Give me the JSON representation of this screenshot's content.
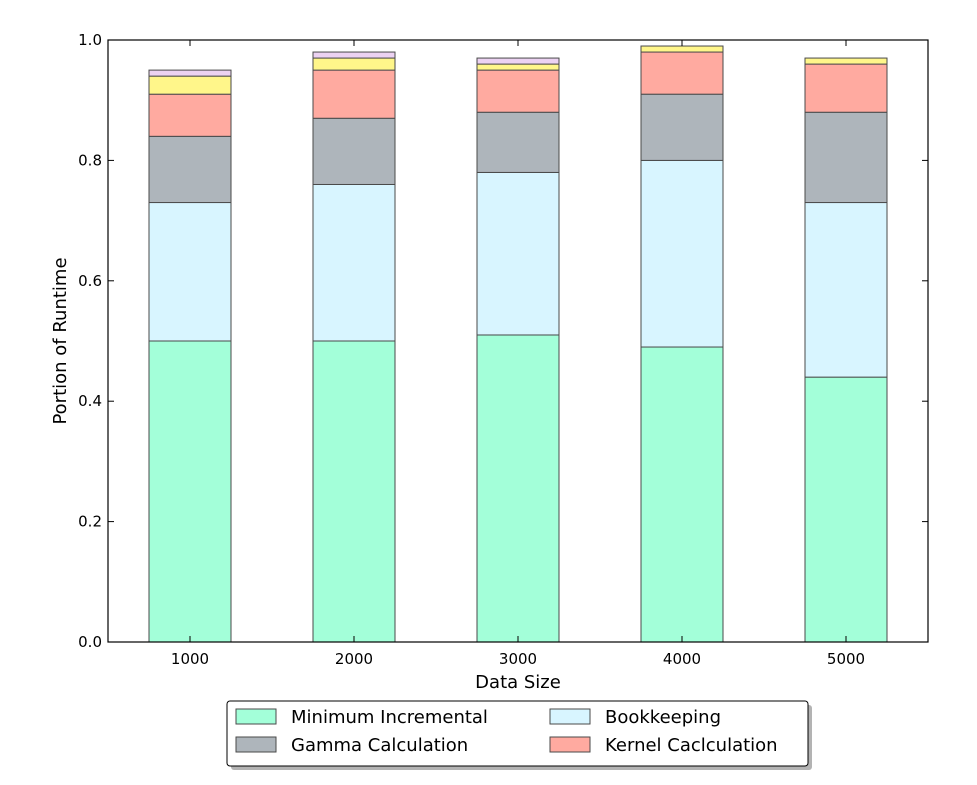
{
  "chart_data": {
    "type": "bar",
    "stacked": true,
    "title": "",
    "xlabel": "Data Size",
    "ylabel": "Portion of Runtime",
    "categories": [
      "1000",
      "2000",
      "3000",
      "4000",
      "5000"
    ],
    "ylim": [
      0,
      1.0
    ],
    "yticks": [
      "0.0",
      "0.2",
      "0.4",
      "0.6",
      "0.8",
      "1.0"
    ],
    "grid": false,
    "legend_position": "bottom-center",
    "series": [
      {
        "name": "Minimum Incremental",
        "color": "#a3ffd9",
        "values": [
          0.5,
          0.5,
          0.51,
          0.49,
          0.44
        ]
      },
      {
        "name": "Bookkeeping",
        "color": "#d8f5ff",
        "values": [
          0.23,
          0.26,
          0.27,
          0.31,
          0.29
        ]
      },
      {
        "name": "Gamma Calculation",
        "color": "#aeb5bb",
        "values": [
          0.11,
          0.11,
          0.1,
          0.11,
          0.15
        ]
      },
      {
        "name": "Kernel Caclculation",
        "color": "#ffaaa0",
        "values": [
          0.07,
          0.08,
          0.07,
          0.07,
          0.08
        ]
      },
      {
        "color": "#fff68a",
        "values": [
          0.03,
          0.02,
          0.01,
          0.01,
          0.01
        ]
      },
      {
        "color": "#ecd2f2",
        "values": [
          0.01,
          0.01,
          0.01,
          0.0,
          0.0
        ]
      }
    ]
  }
}
